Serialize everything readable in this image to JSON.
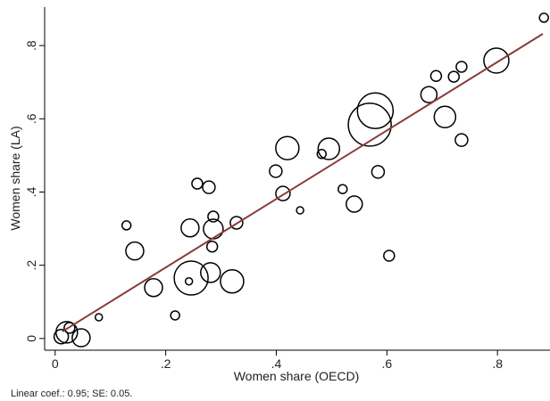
{
  "chart_data": {
    "type": "bubble",
    "x_label": "Women share (OECD)",
    "y_label": "Women share (LA)",
    "annotation": "Linear coef.: 0.95; SE: 0.05.",
    "xlim": [
      -0.019,
      0.895
    ],
    "ylim": [
      -0.032,
      0.905
    ],
    "xticks": [
      0,
      {
        "value": 0.2,
        "label": ".2"
      },
      {
        "value": 0.4,
        "label": ".4"
      },
      {
        "value": 0.6,
        "label": ".6"
      },
      {
        "value": 0.8,
        "label": ".8"
      }
    ],
    "yticks": [
      0,
      {
        "value": 0.2,
        "label": ".2"
      },
      {
        "value": 0.4,
        "label": ".4"
      },
      {
        "value": 0.6,
        "label": ".6"
      },
      {
        "value": 0.8,
        "label": ".8"
      }
    ],
    "grid": false,
    "series": [
      {
        "color": "#000000",
        "x": [
          0.884,
          0.798,
          0.735,
          0.721,
          0.676,
          0.689,
          0.579,
          0.569,
          0.705,
          0.735,
          0.584,
          0.42,
          0.495,
          0.482,
          0.399,
          0.412,
          0.52,
          0.541,
          0.443,
          0.257,
          0.278,
          0.244,
          0.286,
          0.286,
          0.328,
          0.129,
          0.144,
          0.284,
          0.604,
          0.178,
          0.246,
          0.281,
          0.32,
          0.242,
          0.217,
          0.079,
          0.026,
          0.021,
          0.011,
          0.047
        ],
        "values": [
          0.876,
          0.759,
          0.742,
          0.715,
          0.666,
          0.717,
          0.622,
          0.584,
          0.605,
          0.542,
          0.455,
          0.52,
          0.518,
          0.504,
          0.457,
          0.396,
          0.408,
          0.367,
          0.35,
          0.423,
          0.413,
          0.302,
          0.333,
          0.299,
          0.316,
          0.309,
          0.239,
          0.251,
          0.226,
          0.139,
          0.165,
          0.18,
          0.156,
          0.156,
          0.063,
          0.058,
          0.029,
          0.017,
          0.005,
          0.002
        ],
        "sizes": [
          5,
          14,
          6,
          6,
          9,
          6,
          20,
          24,
          12,
          7,
          7,
          13,
          12,
          5,
          7,
          8,
          5,
          9,
          4,
          6,
          7,
          10,
          6,
          11,
          7,
          5,
          10,
          6,
          6,
          10,
          19,
          11,
          13,
          4,
          5,
          4,
          6,
          12,
          8,
          10
        ]
      }
    ],
    "fit_line": {
      "color": "#8b3a3a",
      "x": [
        0.013,
        0.882
      ],
      "values": [
        0.019,
        0.832
      ]
    }
  }
}
